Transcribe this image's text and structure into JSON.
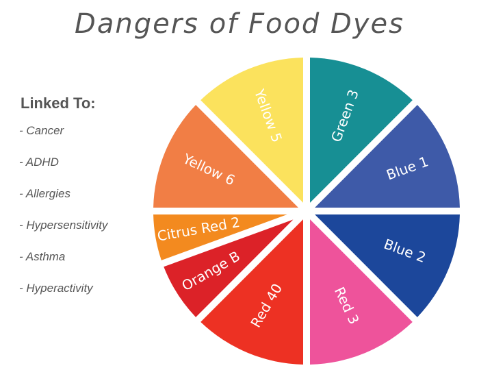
{
  "title": "Dangers of Food Dyes",
  "sidebar": {
    "heading": "Linked To:",
    "items": [
      "- Cancer",
      "- ADHD",
      "- Allergies",
      "- Hypersensitivity",
      "- Asthma",
      "- Hyperactivity"
    ]
  },
  "dyes": [
    {
      "name": "Green 3",
      "color": "#178f94"
    },
    {
      "name": "Blue 1",
      "color": "#3e5aa8"
    },
    {
      "name": "Blue 2",
      "color": "#1c479b"
    },
    {
      "name": "Red 3",
      "color": "#ee539b"
    },
    {
      "name": "Red 40",
      "color": "#ed3123"
    },
    {
      "name": "Orange B",
      "color": "#dc2228"
    },
    {
      "name": "Citrus Red 2",
      "color": "#f38a1f"
    },
    {
      "name": "Yellow 6",
      "color": "#f17e45"
    },
    {
      "name": "Yellow 5",
      "color": "#fbe25d"
    }
  ]
}
